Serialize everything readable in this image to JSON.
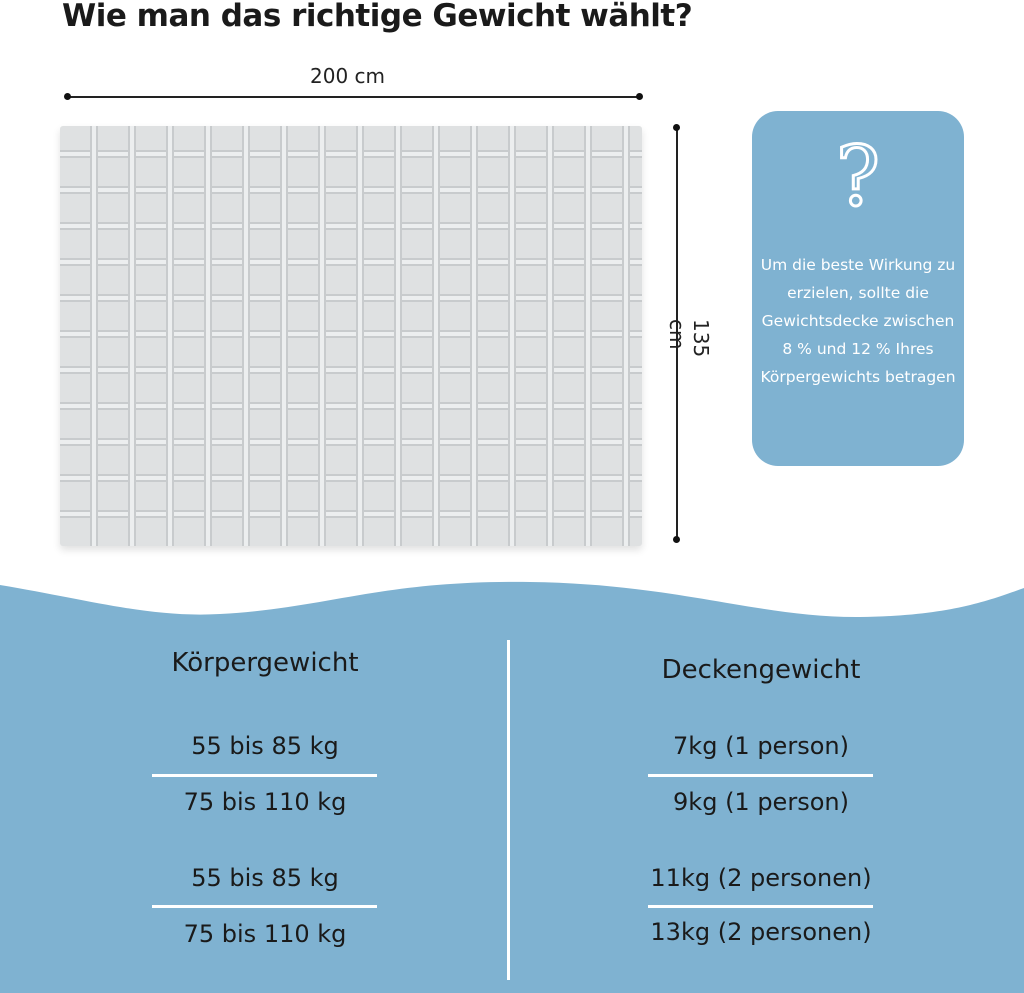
{
  "title": "Wie man das richtige Gewicht wählt?",
  "dimensions": {
    "width": "200 cm",
    "height": "135 cm"
  },
  "info_card": {
    "icon": "question-mark-icon",
    "text": "Um die beste Wirkung zu erzielen, sollte die Gewichtsdecke zwischen 8 % und 12 % Ihres Körpergewichts betragen"
  },
  "table": {
    "left_header": "Körpergewicht",
    "right_header": "Deckengewicht",
    "left": [
      "55 bis 85 kg",
      "75 bis 110 kg",
      "55 bis 85 kg",
      "75 bis 110 kg"
    ],
    "right": [
      "7kg (1 person)",
      "9kg (1 person)",
      "11kg (2 personen)",
      "13kg (2 personen)"
    ]
  },
  "colors": {
    "accent": "#7fb2d1"
  }
}
